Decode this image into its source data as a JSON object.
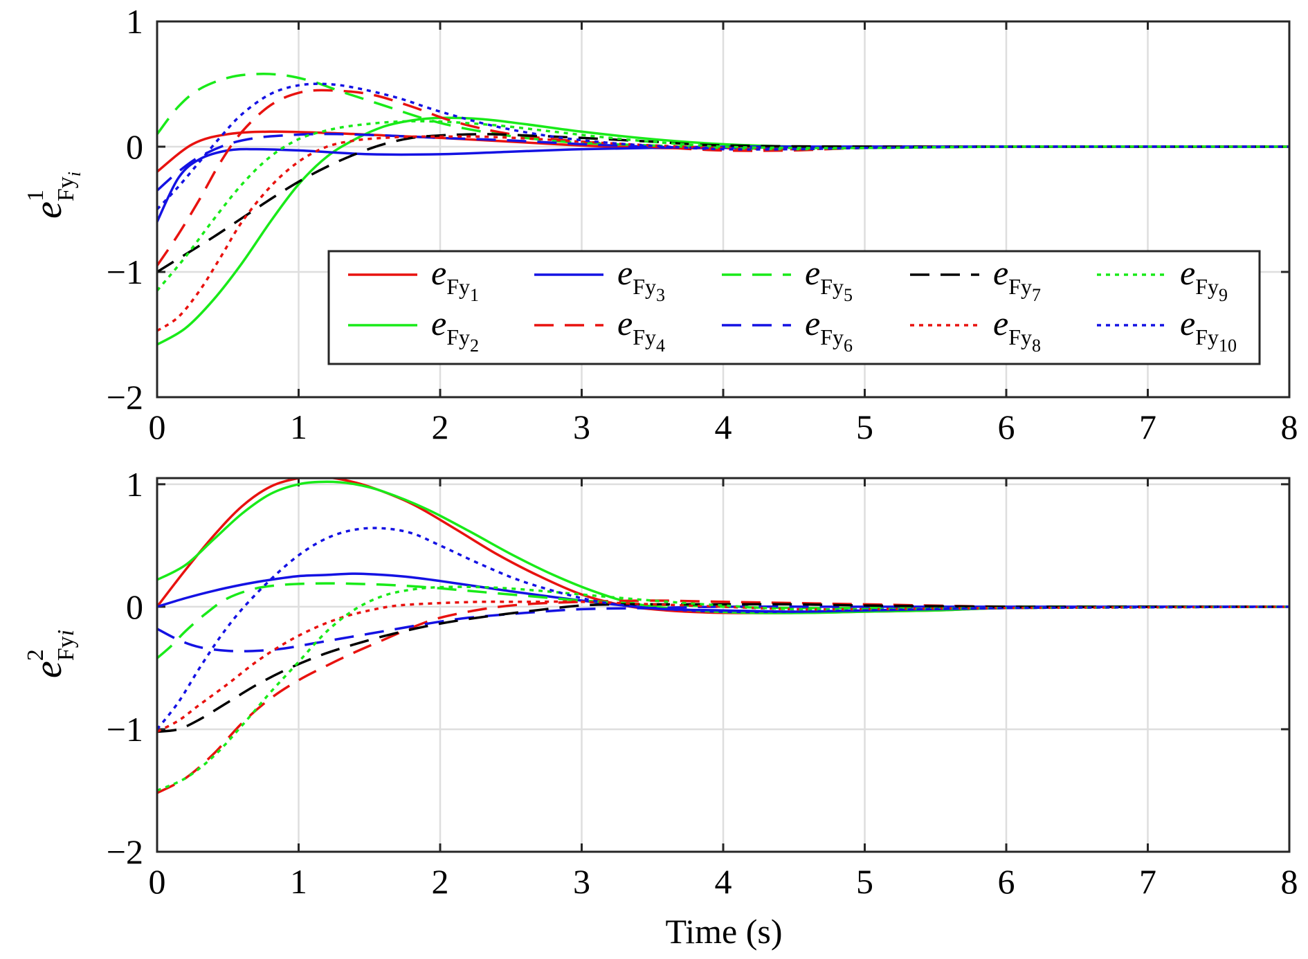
{
  "x_axis": {
    "label": "Time (s)",
    "ticks": [
      "0",
      "1",
      "2",
      "3",
      "4",
      "5",
      "6",
      "7",
      "8"
    ]
  },
  "style": {
    "colors": {
      "red": "#e8120f",
      "green": "#19ea19",
      "blue": "#1412e3",
      "black": "#000000",
      "grid": "#dedede",
      "frame": "#262626"
    }
  },
  "chart_data": [
    {
      "type": "line",
      "panel": "top",
      "ylabel": {
        "base": "e",
        "sup": "1",
        "sub": "Fy",
        "subsub": "i"
      },
      "xlim": [
        0,
        8
      ],
      "ylim": [
        -2,
        1
      ],
      "yticks": [
        "−2",
        "−1",
        "0",
        "1"
      ],
      "grid": true,
      "legend": {
        "placement": "lower-right",
        "columns": 5,
        "entries": [
          {
            "base": "e",
            "sub": "Fy",
            "idx": "1"
          },
          {
            "base": "e",
            "sub": "Fy",
            "idx": "2"
          },
          {
            "base": "e",
            "sub": "Fy",
            "idx": "3"
          },
          {
            "base": "e",
            "sub": "Fy",
            "idx": "4"
          },
          {
            "base": "e",
            "sub": "Fy",
            "idx": "5"
          },
          {
            "base": "e",
            "sub": "Fy",
            "idx": "6"
          },
          {
            "base": "e",
            "sub": "Fy",
            "idx": "7"
          },
          {
            "base": "e",
            "sub": "Fy",
            "idx": "8"
          },
          {
            "base": "e",
            "sub": "Fy",
            "idx": "9"
          },
          {
            "base": "e",
            "sub": "Fy",
            "idx": "10"
          }
        ]
      },
      "series": [
        {
          "color": "red",
          "dash": "solid",
          "x": [
            0,
            0.25,
            0.5,
            0.8,
            1.2,
            1.6,
            2.0,
            2.5,
            3.0,
            3.5,
            4.0,
            5.0,
            6.0,
            8.0
          ],
          "y": [
            -0.2,
            0.02,
            0.1,
            0.12,
            0.11,
            0.09,
            0.07,
            0.04,
            0.01,
            -0.01,
            -0.01,
            0,
            0,
            0
          ]
        },
        {
          "color": "green",
          "dash": "solid",
          "x": [
            0,
            0.2,
            0.4,
            0.6,
            0.8,
            1.0,
            1.2,
            1.4,
            1.6,
            1.8,
            2.0,
            2.3,
            2.6,
            3.0,
            3.5,
            4.0,
            4.5,
            5.0,
            6.0,
            8.0
          ],
          "y": [
            -1.58,
            -1.45,
            -1.22,
            -0.93,
            -0.6,
            -0.3,
            -0.08,
            0.06,
            0.16,
            0.21,
            0.23,
            0.22,
            0.18,
            0.12,
            0.06,
            0.02,
            0.0,
            -0.01,
            0,
            0
          ]
        },
        {
          "color": "blue",
          "dash": "solid",
          "x": [
            0,
            0.15,
            0.3,
            0.5,
            0.7,
            1.0,
            1.5,
            2.0,
            2.5,
            3.0,
            3.5,
            4.0,
            5.0,
            8.0
          ],
          "y": [
            -0.6,
            -0.25,
            -0.1,
            -0.03,
            -0.02,
            -0.03,
            -0.06,
            -0.06,
            -0.04,
            -0.02,
            -0.01,
            0,
            0,
            0
          ]
        },
        {
          "color": "red",
          "dash": "dash",
          "x": [
            0,
            0.15,
            0.3,
            0.45,
            0.6,
            0.8,
            1.0,
            1.2,
            1.5,
            1.8,
            2.1,
            2.5,
            3.0,
            3.5,
            4.0,
            4.5,
            5.0,
            6.0,
            8.0
          ],
          "y": [
            -0.95,
            -0.7,
            -0.42,
            -0.12,
            0.12,
            0.33,
            0.43,
            0.45,
            0.42,
            0.32,
            0.2,
            0.1,
            0.04,
            0.0,
            -0.03,
            -0.03,
            -0.01,
            0,
            0
          ]
        },
        {
          "color": "green",
          "dash": "dash",
          "x": [
            0,
            0.15,
            0.3,
            0.5,
            0.7,
            0.9,
            1.1,
            1.3,
            1.6,
            1.9,
            2.2,
            2.6,
            3.0,
            3.5,
            4.0,
            4.5,
            5.0,
            6.0,
            8.0
          ],
          "y": [
            0.1,
            0.32,
            0.46,
            0.55,
            0.58,
            0.57,
            0.52,
            0.44,
            0.33,
            0.22,
            0.14,
            0.07,
            0.03,
            0.01,
            -0.01,
            -0.02,
            -0.01,
            0,
            0
          ]
        },
        {
          "color": "blue",
          "dash": "dash",
          "x": [
            0,
            0.15,
            0.3,
            0.5,
            0.7,
            0.9,
            1.1,
            1.3,
            1.6,
            2.0,
            2.5,
            3.0,
            3.5,
            4.0,
            5.0,
            8.0
          ],
          "y": [
            -0.35,
            -0.2,
            -0.08,
            0.02,
            0.07,
            0.09,
            0.1,
            0.1,
            0.09,
            0.07,
            0.05,
            0.02,
            0.0,
            -0.01,
            0,
            0
          ]
        },
        {
          "color": "black",
          "dash": "dash",
          "x": [
            0,
            0.2,
            0.4,
            0.6,
            0.8,
            1.0,
            1.2,
            1.4,
            1.6,
            1.8,
            2.0,
            2.3,
            2.6,
            3.0,
            3.5,
            4.0,
            5.0,
            6.0,
            8.0
          ],
          "y": [
            -1.0,
            -0.86,
            -0.72,
            -0.57,
            -0.42,
            -0.28,
            -0.16,
            -0.06,
            0.02,
            0.07,
            0.09,
            0.1,
            0.09,
            0.07,
            0.04,
            0.01,
            0,
            0,
            0
          ]
        },
        {
          "color": "red",
          "dash": "dot",
          "x": [
            0,
            0.15,
            0.3,
            0.45,
            0.6,
            0.8,
            1.0,
            1.2,
            1.4,
            1.6,
            1.8,
            2.0,
            2.3,
            2.7,
            3.0,
            3.5,
            4.0,
            4.5,
            5.0,
            6.0,
            8.0
          ],
          "y": [
            -1.47,
            -1.36,
            -1.15,
            -0.88,
            -0.6,
            -0.32,
            -0.12,
            0.0,
            0.05,
            0.07,
            0.08,
            0.08,
            0.08,
            0.06,
            0.04,
            0.01,
            -0.01,
            -0.02,
            -0.01,
            0,
            0
          ]
        },
        {
          "color": "green",
          "dash": "dot",
          "x": [
            0,
            0.2,
            0.4,
            0.6,
            0.8,
            1.0,
            1.2,
            1.4,
            1.7,
            2.0,
            2.4,
            2.8,
            3.2,
            3.6,
            4.0,
            4.5,
            5.0,
            6.0,
            8.0
          ],
          "y": [
            -1.15,
            -0.88,
            -0.58,
            -0.3,
            -0.08,
            0.06,
            0.13,
            0.17,
            0.2,
            0.2,
            0.17,
            0.12,
            0.07,
            0.03,
            0.0,
            -0.01,
            -0.01,
            0,
            0
          ]
        },
        {
          "color": "blue",
          "dash": "dot",
          "x": [
            0,
            0.15,
            0.3,
            0.45,
            0.6,
            0.8,
            1.0,
            1.2,
            1.4,
            1.7,
            2.0,
            2.4,
            2.8,
            3.2,
            3.6,
            4.0,
            4.5,
            5.0,
            6.0,
            8.0
          ],
          "y": [
            -0.5,
            -0.32,
            -0.12,
            0.08,
            0.26,
            0.42,
            0.49,
            0.5,
            0.47,
            0.39,
            0.28,
            0.16,
            0.08,
            0.03,
            0.0,
            -0.02,
            -0.02,
            -0.01,
            0,
            0
          ]
        }
      ]
    },
    {
      "type": "line",
      "panel": "bottom",
      "ylabel": {
        "base": "e",
        "sup": "2",
        "sub": "Fy",
        "subsub": "i"
      },
      "xlabel": "Time (s)",
      "xlim": [
        0,
        8
      ],
      "ylim": [
        -2,
        1.05
      ],
      "yticks": [
        "−2",
        "−1",
        "0",
        "1"
      ],
      "grid": true,
      "series": [
        {
          "color": "red",
          "dash": "solid",
          "x": [
            0,
            0.2,
            0.4,
            0.6,
            0.8,
            1.0,
            1.15,
            1.3,
            1.5,
            1.8,
            2.1,
            2.4,
            2.7,
            3.0,
            3.3,
            3.6,
            4.0,
            4.5,
            5.0,
            5.5,
            6.0,
            7.0,
            8.0
          ],
          "y": [
            0.0,
            0.3,
            0.58,
            0.82,
            0.98,
            1.05,
            1.06,
            1.04,
            0.98,
            0.84,
            0.64,
            0.43,
            0.25,
            0.1,
            0.01,
            -0.03,
            -0.05,
            -0.05,
            -0.04,
            -0.03,
            -0.01,
            0,
            0
          ]
        },
        {
          "color": "green",
          "dash": "solid",
          "x": [
            0,
            0.2,
            0.4,
            0.6,
            0.8,
            1.0,
            1.2,
            1.4,
            1.6,
            1.9,
            2.2,
            2.5,
            2.8,
            3.1,
            3.4,
            3.8,
            4.2,
            4.6,
            5.0,
            5.5,
            6.0,
            7.0,
            8.0
          ],
          "y": [
            0.22,
            0.34,
            0.55,
            0.76,
            0.92,
            1.0,
            1.02,
            1.0,
            0.94,
            0.8,
            0.62,
            0.43,
            0.26,
            0.12,
            0.02,
            -0.03,
            -0.05,
            -0.05,
            -0.04,
            -0.03,
            -0.01,
            0,
            0
          ]
        },
        {
          "color": "blue",
          "dash": "solid",
          "x": [
            0,
            0.2,
            0.4,
            0.6,
            0.8,
            1.0,
            1.2,
            1.4,
            1.6,
            1.8,
            2.0,
            2.3,
            2.6,
            3.0,
            3.3,
            3.6,
            4.0,
            4.5,
            5.0,
            6.0,
            7.0,
            8.0
          ],
          "y": [
            0.0,
            0.07,
            0.13,
            0.18,
            0.22,
            0.25,
            0.26,
            0.27,
            0.26,
            0.24,
            0.21,
            0.16,
            0.11,
            0.05,
            0.01,
            -0.02,
            -0.03,
            -0.04,
            -0.03,
            -0.01,
            0,
            0
          ]
        },
        {
          "color": "red",
          "dash": "dash",
          "x": [
            0,
            0.2,
            0.4,
            0.6,
            0.8,
            1.0,
            1.2,
            1.4,
            1.6,
            1.8,
            2.0,
            2.3,
            2.6,
            3.0,
            3.5,
            4.0,
            4.5,
            5.0,
            6.0,
            7.0,
            8.0
          ],
          "y": [
            -1.52,
            -1.4,
            -1.2,
            -0.95,
            -0.75,
            -0.6,
            -0.48,
            -0.37,
            -0.27,
            -0.17,
            -0.09,
            -0.02,
            0.02,
            0.04,
            0.05,
            0.04,
            0.03,
            0.02,
            0,
            0,
            0
          ]
        },
        {
          "color": "green",
          "dash": "dash",
          "x": [
            0,
            0.1,
            0.2,
            0.35,
            0.5,
            0.7,
            0.9,
            1.1,
            1.3,
            1.6,
            1.9,
            2.2,
            2.6,
            3.0,
            3.5,
            4.0,
            4.5,
            5.0,
            6.0,
            8.0
          ],
          "y": [
            -0.42,
            -0.32,
            -0.2,
            -0.05,
            0.07,
            0.15,
            0.18,
            0.19,
            0.19,
            0.18,
            0.16,
            0.13,
            0.09,
            0.05,
            0.02,
            0.0,
            -0.01,
            -0.01,
            0,
            0
          ]
        },
        {
          "color": "blue",
          "dash": "dash",
          "x": [
            0,
            0.15,
            0.3,
            0.5,
            0.7,
            0.9,
            1.1,
            1.3,
            1.6,
            1.9,
            2.2,
            2.6,
            3.0,
            3.5,
            4.0,
            5.0,
            6.0,
            8.0
          ],
          "y": [
            -0.18,
            -0.27,
            -0.33,
            -0.36,
            -0.36,
            -0.34,
            -0.3,
            -0.26,
            -0.2,
            -0.14,
            -0.09,
            -0.05,
            -0.02,
            -0.01,
            0,
            0,
            0,
            0
          ]
        },
        {
          "color": "black",
          "dash": "dash",
          "x": [
            0,
            0.15,
            0.3,
            0.5,
            0.7,
            0.9,
            1.1,
            1.3,
            1.6,
            1.9,
            2.2,
            2.6,
            3.0,
            3.3,
            3.6,
            4.0,
            4.5,
            5.0,
            6.0,
            7.0,
            8.0
          ],
          "y": [
            -1.02,
            -1.0,
            -0.92,
            -0.78,
            -0.64,
            -0.52,
            -0.42,
            -0.34,
            -0.24,
            -0.16,
            -0.1,
            -0.04,
            0.01,
            0.02,
            0.02,
            0.02,
            0.02,
            0.01,
            0,
            0,
            0
          ]
        },
        {
          "color": "red",
          "dash": "dot",
          "x": [
            0,
            0.15,
            0.3,
            0.5,
            0.7,
            0.9,
            1.1,
            1.3,
            1.5,
            1.7,
            2.0,
            2.3,
            2.6,
            3.0,
            3.5,
            4.0,
            4.5,
            5.0,
            6.0,
            8.0
          ],
          "y": [
            -1.02,
            -0.93,
            -0.8,
            -0.63,
            -0.45,
            -0.3,
            -0.18,
            -0.09,
            -0.03,
            0.01,
            0.03,
            0.04,
            0.04,
            0.04,
            0.02,
            0.0,
            -0.02,
            -0.02,
            -0.01,
            0
          ]
        },
        {
          "color": "green",
          "dash": "dot",
          "x": [
            0,
            0.2,
            0.4,
            0.6,
            0.8,
            1.0,
            1.2,
            1.4,
            1.6,
            1.8,
            2.0,
            2.3,
            2.6,
            3.0,
            3.5,
            4.0,
            4.5,
            5.0,
            6.0,
            8.0
          ],
          "y": [
            -1.5,
            -1.4,
            -1.22,
            -0.97,
            -0.7,
            -0.45,
            -0.2,
            -0.02,
            0.09,
            0.14,
            0.16,
            0.16,
            0.14,
            0.1,
            0.05,
            0.01,
            -0.02,
            -0.02,
            -0.01,
            0
          ]
        },
        {
          "color": "blue",
          "dash": "dot",
          "x": [
            0,
            0.15,
            0.3,
            0.45,
            0.6,
            0.8,
            1.0,
            1.2,
            1.4,
            1.6,
            1.8,
            2.0,
            2.3,
            2.6,
            3.0,
            3.3,
            3.6,
            4.0,
            4.5,
            5.0,
            6.0,
            8.0
          ],
          "y": [
            -1.0,
            -0.78,
            -0.5,
            -0.24,
            -0.02,
            0.22,
            0.42,
            0.56,
            0.63,
            0.64,
            0.6,
            0.5,
            0.34,
            0.2,
            0.07,
            0.01,
            -0.02,
            -0.04,
            -0.04,
            -0.03,
            -0.01,
            0
          ]
        }
      ]
    }
  ]
}
